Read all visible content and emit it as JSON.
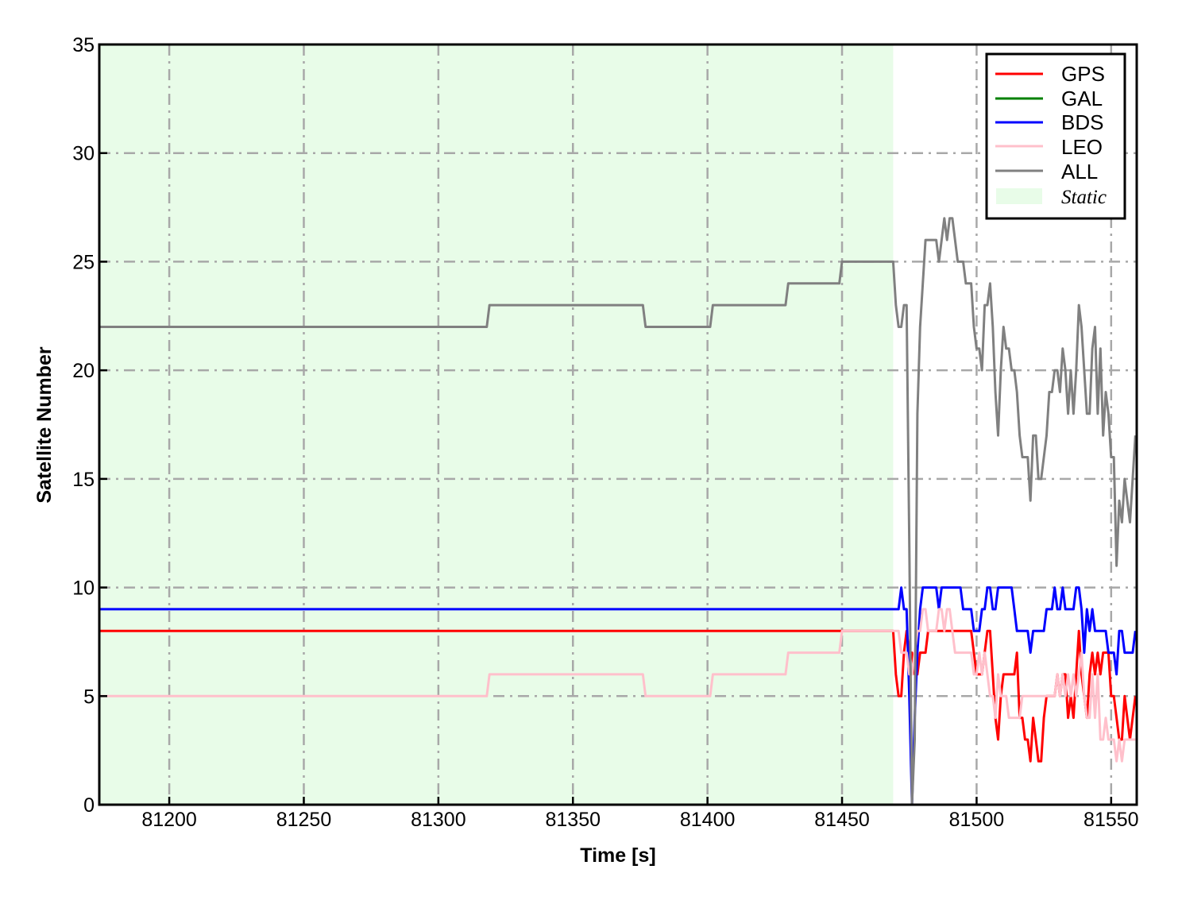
{
  "chart_data": {
    "type": "line",
    "xlabel": "Time [s]",
    "ylabel": "Satellite Number",
    "xlim": [
      81174,
      81559.5
    ],
    "ylim": [
      0,
      35
    ],
    "xticks": [
      81200,
      81250,
      81300,
      81350,
      81400,
      81450,
      81500,
      81550
    ],
    "yticks": [
      0,
      5,
      10,
      15,
      20,
      25,
      30,
      35
    ],
    "grid": true,
    "legend_position": "top-right",
    "shaded_region": {
      "name": "Static",
      "x_range": [
        81174,
        81469
      ],
      "color": "#e8fce8"
    },
    "series": [
      {
        "name": "GPS",
        "color": "#ff0000",
        "points": [
          [
            81174,
            8
          ],
          [
            81469,
            8
          ],
          [
            81470,
            6
          ],
          [
            81471,
            5
          ],
          [
            81472,
            5
          ],
          [
            81473,
            7
          ],
          [
            81474,
            8
          ],
          [
            81475,
            7
          ],
          [
            81476,
            7
          ],
          [
            81477,
            6
          ],
          [
            81478,
            6
          ],
          [
            81479,
            7
          ],
          [
            81480,
            7
          ],
          [
            81481,
            7
          ],
          [
            81482,
            8
          ],
          [
            81498,
            8
          ],
          [
            81499,
            7
          ],
          [
            81500,
            6
          ],
          [
            81501,
            6
          ],
          [
            81502,
            6
          ],
          [
            81503,
            7
          ],
          [
            81504,
            8
          ],
          [
            81505,
            8
          ],
          [
            81506,
            6
          ],
          [
            81507,
            4
          ],
          [
            81508,
            3
          ],
          [
            81509,
            5
          ],
          [
            81510,
            6
          ],
          [
            81511,
            6
          ],
          [
            81512,
            6
          ],
          [
            81513,
            6
          ],
          [
            81514,
            6
          ],
          [
            81515,
            7
          ],
          [
            81516,
            4
          ],
          [
            81517,
            4
          ],
          [
            81518,
            3
          ],
          [
            81519,
            3
          ],
          [
            81520,
            2
          ],
          [
            81521,
            4
          ],
          [
            81522,
            3
          ],
          [
            81523,
            2
          ],
          [
            81524,
            2
          ],
          [
            81525,
            4
          ],
          [
            81526,
            5
          ],
          [
            81527,
            5
          ],
          [
            81528,
            5
          ],
          [
            81529,
            5
          ],
          [
            81530,
            6
          ],
          [
            81531,
            5
          ],
          [
            81532,
            6
          ],
          [
            81533,
            6
          ],
          [
            81534,
            4
          ],
          [
            81535,
            5
          ],
          [
            81536,
            4
          ],
          [
            81537,
            6
          ],
          [
            81538,
            8
          ],
          [
            81539,
            6
          ],
          [
            81540,
            5
          ],
          [
            81541,
            4
          ],
          [
            81542,
            6
          ],
          [
            81543,
            7
          ],
          [
            81544,
            6
          ],
          [
            81545,
            7
          ],
          [
            81546,
            6
          ],
          [
            81547,
            7
          ],
          [
            81548,
            7
          ],
          [
            81549,
            7
          ],
          [
            81550,
            5
          ],
          [
            81551,
            5
          ],
          [
            81552,
            4
          ],
          [
            81553,
            3
          ],
          [
            81554,
            3
          ],
          [
            81555,
            5
          ],
          [
            81556,
            4
          ],
          [
            81557,
            3
          ],
          [
            81558,
            4
          ],
          [
            81559,
            5
          ]
        ]
      },
      {
        "name": "GAL",
        "color": "#008000",
        "points": [
          [
            81174,
            0
          ],
          [
            81559,
            0
          ]
        ]
      },
      {
        "name": "BDS",
        "color": "#0000ff",
        "points": [
          [
            81174,
            9
          ],
          [
            81471,
            9
          ],
          [
            81472,
            10
          ],
          [
            81473,
            9
          ],
          [
            81474,
            9
          ],
          [
            81475,
            5
          ],
          [
            81476,
            0
          ],
          [
            81477,
            4
          ],
          [
            81478,
            7
          ],
          [
            81479,
            9
          ],
          [
            81480,
            10
          ],
          [
            81485,
            10
          ],
          [
            81486,
            9
          ],
          [
            81487,
            10
          ],
          [
            81494,
            10
          ],
          [
            81495,
            9
          ],
          [
            81498,
            9
          ],
          [
            81499,
            8
          ],
          [
            81500,
            8
          ],
          [
            81501,
            8
          ],
          [
            81502,
            9
          ],
          [
            81503,
            9
          ],
          [
            81504,
            10
          ],
          [
            81505,
            10
          ],
          [
            81506,
            9
          ],
          [
            81507,
            9
          ],
          [
            81508,
            10
          ],
          [
            81513,
            10
          ],
          [
            81514,
            9
          ],
          [
            81515,
            8
          ],
          [
            81519,
            8
          ],
          [
            81520,
            7
          ],
          [
            81521,
            8
          ],
          [
            81525,
            8
          ],
          [
            81526,
            9
          ],
          [
            81528,
            9
          ],
          [
            81529,
            10
          ],
          [
            81530,
            9
          ],
          [
            81531,
            9
          ],
          [
            81532,
            10
          ],
          [
            81533,
            9
          ],
          [
            81536,
            9
          ],
          [
            81537,
            10
          ],
          [
            81538,
            10
          ],
          [
            81539,
            9
          ],
          [
            81540,
            7
          ],
          [
            81541,
            9
          ],
          [
            81542,
            8
          ],
          [
            81543,
            9
          ],
          [
            81544,
            8
          ],
          [
            81548,
            8
          ],
          [
            81549,
            7
          ],
          [
            81551,
            7
          ],
          [
            81552,
            6
          ],
          [
            81553,
            8
          ],
          [
            81554,
            8
          ],
          [
            81555,
            7
          ],
          [
            81558,
            7
          ],
          [
            81559,
            8
          ]
        ]
      },
      {
        "name": "LEO",
        "color": "#ffc0cb",
        "points": [
          [
            81174,
            5
          ],
          [
            81318,
            5
          ],
          [
            81319,
            6
          ],
          [
            81376,
            6
          ],
          [
            81377,
            5
          ],
          [
            81401,
            5
          ],
          [
            81402,
            6
          ],
          [
            81429,
            6
          ],
          [
            81430,
            7
          ],
          [
            81449,
            7
          ],
          [
            81450,
            8
          ],
          [
            81471,
            8
          ],
          [
            81472,
            7
          ],
          [
            81474,
            7
          ],
          [
            81475,
            6
          ],
          [
            81476,
            6
          ],
          [
            81477,
            7
          ],
          [
            81478,
            8
          ],
          [
            81479,
            8
          ],
          [
            81480,
            9
          ],
          [
            81481,
            9
          ],
          [
            81482,
            8
          ],
          [
            81485,
            8
          ],
          [
            81486,
            9
          ],
          [
            81487,
            9
          ],
          [
            81488,
            8
          ],
          [
            81489,
            9
          ],
          [
            81490,
            9
          ],
          [
            81491,
            8
          ],
          [
            81492,
            7
          ],
          [
            81498,
            7
          ],
          [
            81499,
            6
          ],
          [
            81500,
            6
          ],
          [
            81501,
            7
          ],
          [
            81502,
            6
          ],
          [
            81503,
            7
          ],
          [
            81504,
            6
          ],
          [
            81505,
            5
          ],
          [
            81506,
            5
          ],
          [
            81507,
            4
          ],
          [
            81508,
            6
          ],
          [
            81509,
            5
          ],
          [
            81510,
            5
          ],
          [
            81511,
            5
          ],
          [
            81512,
            4
          ],
          [
            81516,
            4
          ],
          [
            81517,
            5
          ],
          [
            81529,
            5
          ],
          [
            81530,
            6
          ],
          [
            81531,
            5
          ],
          [
            81532,
            6
          ],
          [
            81533,
            5
          ],
          [
            81534,
            6
          ],
          [
            81535,
            5
          ],
          [
            81536,
            6
          ],
          [
            81537,
            5
          ],
          [
            81538,
            6
          ],
          [
            81539,
            7
          ],
          [
            81540,
            5
          ],
          [
            81541,
            4
          ],
          [
            81542,
            4
          ],
          [
            81543,
            6
          ],
          [
            81544,
            4
          ],
          [
            81545,
            6
          ],
          [
            81546,
            3
          ],
          [
            81547,
            3
          ],
          [
            81548,
            4
          ],
          [
            81549,
            3
          ],
          [
            81551,
            3
          ],
          [
            81552,
            2
          ],
          [
            81553,
            3
          ],
          [
            81554,
            2
          ],
          [
            81555,
            3
          ],
          [
            81559,
            3
          ]
        ]
      },
      {
        "name": "ALL",
        "color": "#808080",
        "points": [
          [
            81174,
            22
          ],
          [
            81318,
            22
          ],
          [
            81319,
            23
          ],
          [
            81376,
            23
          ],
          [
            81377,
            22
          ],
          [
            81401,
            22
          ],
          [
            81402,
            23
          ],
          [
            81429,
            23
          ],
          [
            81430,
            24
          ],
          [
            81449,
            24
          ],
          [
            81450,
            25
          ],
          [
            81469,
            25
          ],
          [
            81470,
            23
          ],
          [
            81471,
            22
          ],
          [
            81472,
            22
          ],
          [
            81473,
            23
          ],
          [
            81474,
            23
          ],
          [
            81475,
            12
          ],
          [
            81476,
            0
          ],
          [
            81477,
            3
          ],
          [
            81478,
            18
          ],
          [
            81479,
            22
          ],
          [
            81480,
            24
          ],
          [
            81481,
            26
          ],
          [
            81485,
            26
          ],
          [
            81486,
            25
          ],
          [
            81487,
            26
          ],
          [
            81488,
            27
          ],
          [
            81489,
            26
          ],
          [
            81490,
            27
          ],
          [
            81491,
            27
          ],
          [
            81492,
            26
          ],
          [
            81493,
            25
          ],
          [
            81495,
            25
          ],
          [
            81496,
            24
          ],
          [
            81498,
            24
          ],
          [
            81499,
            22
          ],
          [
            81500,
            21
          ],
          [
            81501,
            21
          ],
          [
            81502,
            20
          ],
          [
            81503,
            23
          ],
          [
            81504,
            23
          ],
          [
            81505,
            24
          ],
          [
            81506,
            22
          ],
          [
            81507,
            19
          ],
          [
            81508,
            17
          ],
          [
            81509,
            20
          ],
          [
            81510,
            22
          ],
          [
            81511,
            21
          ],
          [
            81512,
            21
          ],
          [
            81513,
            20
          ],
          [
            81514,
            20
          ],
          [
            81515,
            19
          ],
          [
            81516,
            17
          ],
          [
            81517,
            16
          ],
          [
            81519,
            16
          ],
          [
            81520,
            14
          ],
          [
            81521,
            17
          ],
          [
            81522,
            17
          ],
          [
            81523,
            15
          ],
          [
            81524,
            15
          ],
          [
            81525,
            16
          ],
          [
            81526,
            17
          ],
          [
            81527,
            19
          ],
          [
            81528,
            19
          ],
          [
            81529,
            20
          ],
          [
            81530,
            20
          ],
          [
            81531,
            19
          ],
          [
            81532,
            21
          ],
          [
            81533,
            20
          ],
          [
            81534,
            18
          ],
          [
            81535,
            20
          ],
          [
            81536,
            18
          ],
          [
            81537,
            20
          ],
          [
            81538,
            23
          ],
          [
            81539,
            22
          ],
          [
            81540,
            20
          ],
          [
            81541,
            18
          ],
          [
            81542,
            18
          ],
          [
            81543,
            21
          ],
          [
            81544,
            22
          ],
          [
            81545,
            18
          ],
          [
            81546,
            21
          ],
          [
            81547,
            17
          ],
          [
            81548,
            19
          ],
          [
            81549,
            18
          ],
          [
            81550,
            16
          ],
          [
            81551,
            16
          ],
          [
            81552,
            11
          ],
          [
            81553,
            14
          ],
          [
            81554,
            13
          ],
          [
            81555,
            15
          ],
          [
            81556,
            14
          ],
          [
            81557,
            13
          ],
          [
            81558,
            15
          ],
          [
            81559,
            17
          ]
        ]
      }
    ]
  }
}
